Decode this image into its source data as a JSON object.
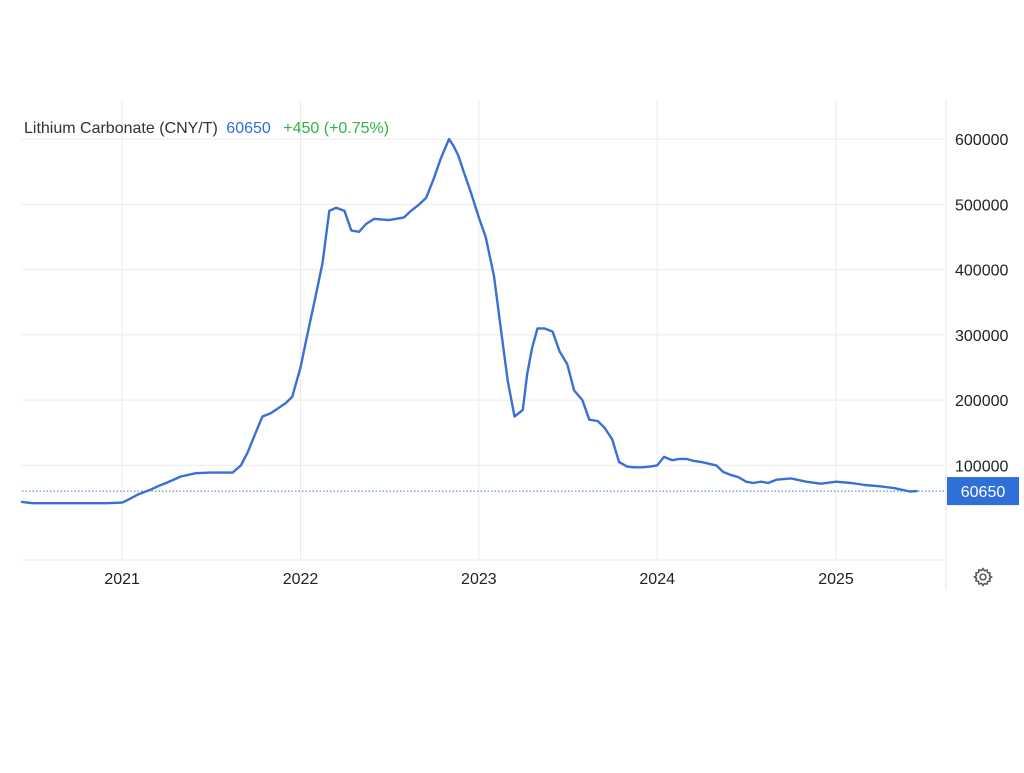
{
  "header": {
    "title": "Lithium Carbonate (CNY/T)",
    "price": "60650",
    "change": "+450 (+0.75%)"
  },
  "colors": {
    "line": "#3a70d6",
    "price_text": "#2f6fd9",
    "change_positive": "#33b24a",
    "badge": "#2f6fd9",
    "grid": "#ebebeb"
  },
  "icons": {
    "settings": "gear-icon"
  },
  "chart_data": {
    "type": "line",
    "title": "Lithium Carbonate (CNY/T)",
    "xlabel": "",
    "ylabel": "",
    "ylim": [
      -45000,
      660000
    ],
    "yticks": [
      100000,
      200000,
      300000,
      400000,
      500000,
      600000
    ],
    "ytick_labels": [
      "100000",
      "200000",
      "300000",
      "400000",
      "500000",
      "600000"
    ],
    "xticks": [
      "2021-01-01",
      "2022-01-01",
      "2023-01-01",
      "2024-01-01",
      "2025-01-01"
    ],
    "xtick_labels": [
      "2021",
      "2022",
      "2023",
      "2024",
      "2025"
    ],
    "xlim": [
      "2020-06-10",
      "2025-08-10"
    ],
    "grid": true,
    "last_value": 60650,
    "last_value_label": "60650",
    "series": [
      {
        "x": [
          "2020-06-10",
          "2020-07-01",
          "2020-09-01",
          "2020-11-01",
          "2020-12-01",
          "2021-01-01",
          "2021-01-15",
          "2021-02-01",
          "2021-03-01",
          "2021-03-15",
          "2021-04-01",
          "2021-05-01",
          "2021-06-01",
          "2021-07-01",
          "2021-08-01",
          "2021-08-15",
          "2021-09-01",
          "2021-09-15",
          "2021-10-01",
          "2021-10-15",
          "2021-11-01",
          "2021-12-01",
          "2021-12-15",
          "2022-01-01",
          "2022-01-15",
          "2022-02-01",
          "2022-02-15",
          "2022-03-01",
          "2022-03-15",
          "2022-04-01",
          "2022-04-15",
          "2022-05-01",
          "2022-05-15",
          "2022-06-01",
          "2022-07-01",
          "2022-08-01",
          "2022-08-15",
          "2022-09-01",
          "2022-09-15",
          "2022-10-01",
          "2022-10-15",
          "2022-11-01",
          "2022-11-10",
          "2022-11-20",
          "2022-12-01",
          "2022-12-15",
          "2023-01-01",
          "2023-01-15",
          "2023-02-01",
          "2023-02-15",
          "2023-03-01",
          "2023-03-15",
          "2023-04-01",
          "2023-04-10",
          "2023-04-20",
          "2023-05-01",
          "2023-05-15",
          "2023-06-01",
          "2023-06-15",
          "2023-07-01",
          "2023-07-15",
          "2023-08-01",
          "2023-08-15",
          "2023-09-01",
          "2023-09-15",
          "2023-10-01",
          "2023-10-15",
          "2023-11-01",
          "2023-11-15",
          "2023-12-01",
          "2023-12-15",
          "2024-01-01",
          "2024-01-15",
          "2024-02-01",
          "2024-02-15",
          "2024-03-01",
          "2024-03-15",
          "2024-04-01",
          "2024-05-01",
          "2024-05-15",
          "2024-06-01",
          "2024-06-15",
          "2024-07-01",
          "2024-07-15",
          "2024-08-01",
          "2024-08-15",
          "2024-09-01",
          "2024-10-01",
          "2024-11-01",
          "2024-12-01",
          "2025-01-01",
          "2025-02-01",
          "2025-03-01",
          "2025-04-01",
          "2025-05-01",
          "2025-06-01",
          "2025-06-15"
        ],
        "y": [
          44000,
          42000,
          42000,
          42000,
          42000,
          43000,
          48000,
          55000,
          63000,
          68000,
          73000,
          83000,
          88000,
          89000,
          89000,
          89000,
          100000,
          120000,
          150000,
          175000,
          180000,
          195000,
          205000,
          250000,
          300000,
          360000,
          410000,
          490000,
          495000,
          490000,
          460000,
          458000,
          470000,
          478000,
          476000,
          480000,
          490000,
          500000,
          510000,
          540000,
          570000,
          600000,
          590000,
          575000,
          550000,
          520000,
          480000,
          450000,
          390000,
          310000,
          230000,
          175000,
          185000,
          240000,
          280000,
          310000,
          310000,
          305000,
          275000,
          255000,
          215000,
          200000,
          170000,
          168000,
          158000,
          140000,
          105000,
          98000,
          97000,
          97000,
          98000,
          100000,
          113000,
          108000,
          110000,
          110000,
          107000,
          105000,
          100000,
          90000,
          85000,
          82000,
          75000,
          73000,
          75000,
          73000,
          78000,
          80000,
          75000,
          72000,
          75000,
          73000,
          70000,
          68000,
          65000,
          60000,
          60650
        ]
      }
    ]
  }
}
